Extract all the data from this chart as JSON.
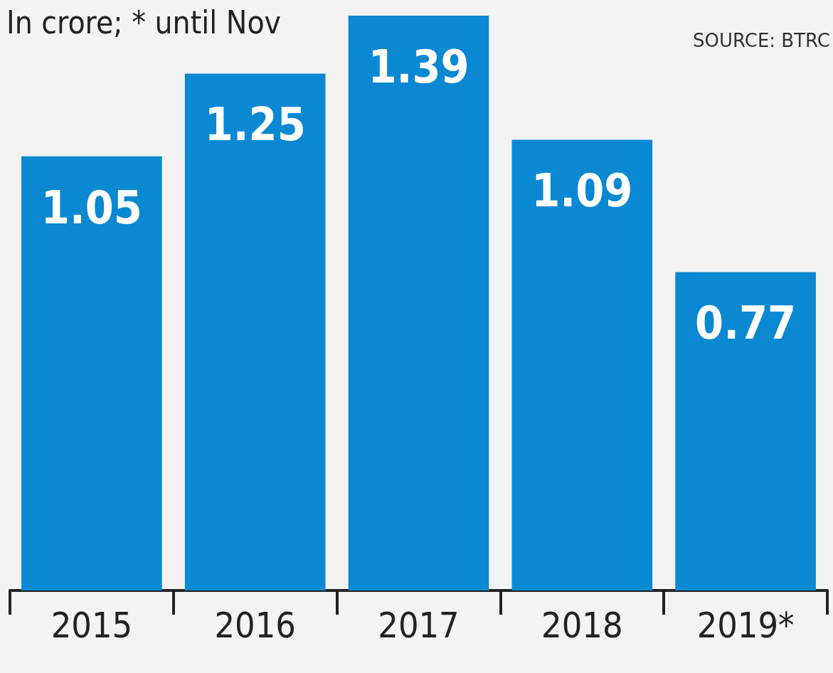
{
  "chart_data": {
    "type": "bar",
    "title": "In crore; * until Nov",
    "annotations": [
      "SOURCE: BTRC"
    ],
    "categories": [
      "2015",
      "2016",
      "2017",
      "2018",
      "2019*"
    ],
    "values": [
      1.05,
      1.25,
      1.39,
      1.09,
      0.77
    ],
    "color": "#0b88d2",
    "data_labels": true
  }
}
